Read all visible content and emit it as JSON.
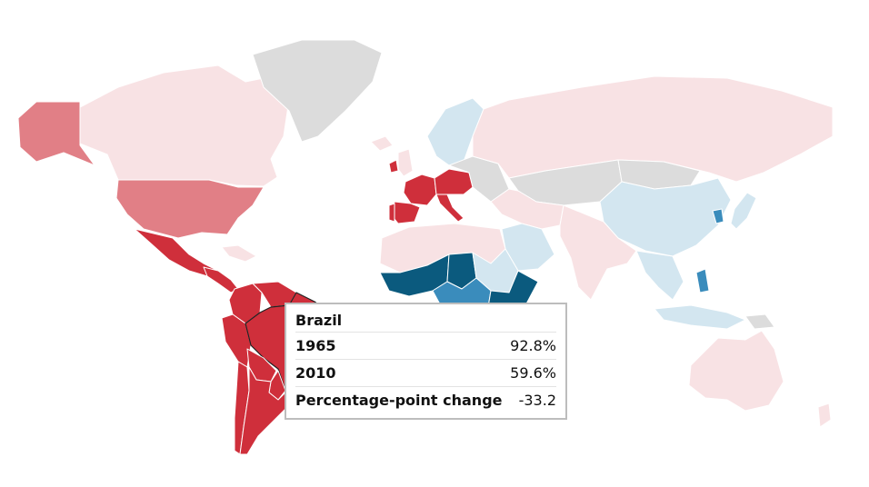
{
  "colors": {
    "ocean": "#ffffff",
    "no_data": "#dcdcdc",
    "decrease_strong": "#cf2f3b",
    "decrease_medium": "#e17f86",
    "decrease_light": "#f8e2e4",
    "increase_light": "#d3e6f0",
    "increase_medium": "#3a8cbc",
    "increase_strong": "#0b5a7e",
    "tooltip_border": "#bdbdbd",
    "highlight_stroke": "#222222"
  },
  "map": {
    "highlighted_country": "Brazil",
    "countries": [
      {
        "name": "Canada",
        "category": "decrease_light"
      },
      {
        "name": "Alaska (United States)",
        "category": "decrease_medium"
      },
      {
        "name": "United States",
        "category": "decrease_medium"
      },
      {
        "name": "Greenland",
        "category": "no_data"
      },
      {
        "name": "Mexico",
        "category": "decrease_strong"
      },
      {
        "name": "Central America",
        "category": "decrease_strong"
      },
      {
        "name": "Caribbean",
        "category": "decrease_light"
      },
      {
        "name": "Colombia",
        "category": "decrease_strong"
      },
      {
        "name": "Venezuela",
        "category": "decrease_strong"
      },
      {
        "name": "Peru",
        "category": "decrease_strong"
      },
      {
        "name": "Brazil",
        "category": "decrease_strong"
      },
      {
        "name": "Bolivia",
        "category": "decrease_strong"
      },
      {
        "name": "Paraguay",
        "category": "decrease_strong"
      },
      {
        "name": "Chile",
        "category": "decrease_strong"
      },
      {
        "name": "Argentina",
        "category": "decrease_strong"
      },
      {
        "name": "Iceland",
        "category": "decrease_light"
      },
      {
        "name": "Ireland",
        "category": "decrease_strong"
      },
      {
        "name": "United Kingdom",
        "category": "decrease_light"
      },
      {
        "name": "Scandinavia",
        "category": "increase_light"
      },
      {
        "name": "France",
        "category": "decrease_strong"
      },
      {
        "name": "Spain",
        "category": "decrease_strong"
      },
      {
        "name": "Portugal",
        "category": "decrease_strong"
      },
      {
        "name": "Italy",
        "category": "decrease_strong"
      },
      {
        "name": "Central Europe",
        "category": "decrease_strong"
      },
      {
        "name": "Eastern Europe",
        "category": "no_data"
      },
      {
        "name": "Russia",
        "category": "decrease_light"
      },
      {
        "name": "Central Asia",
        "category": "no_data"
      },
      {
        "name": "Middle East",
        "category": "decrease_light"
      },
      {
        "name": "Arabia",
        "category": "increase_light"
      },
      {
        "name": "North Africa",
        "category": "decrease_light"
      },
      {
        "name": "West Africa",
        "category": "increase_strong"
      },
      {
        "name": "Chad",
        "category": "increase_strong"
      },
      {
        "name": "Sudan",
        "category": "increase_light"
      },
      {
        "name": "Central Africa",
        "category": "increase_medium"
      },
      {
        "name": "East Africa",
        "category": "increase_strong"
      },
      {
        "name": "Southern Africa",
        "category": "increase_light"
      },
      {
        "name": "Madagascar",
        "category": "increase_light"
      },
      {
        "name": "India",
        "category": "decrease_light"
      },
      {
        "name": "China",
        "category": "increase_light"
      },
      {
        "name": "Mongolia",
        "category": "no_data"
      },
      {
        "name": "South Korea",
        "category": "increase_medium"
      },
      {
        "name": "Japan",
        "category": "increase_light"
      },
      {
        "name": "Southeast Asia",
        "category": "increase_light"
      },
      {
        "name": "Philippines",
        "category": "increase_medium"
      },
      {
        "name": "Indonesia",
        "category": "increase_light"
      },
      {
        "name": "Papua New Guinea",
        "category": "no_data"
      },
      {
        "name": "Australia",
        "category": "decrease_light"
      },
      {
        "name": "New Zealand",
        "category": "decrease_light"
      }
    ]
  },
  "tooltip": {
    "country": "Brazil",
    "rows": [
      {
        "label": "1965",
        "value": "92.8%"
      },
      {
        "label": "2010",
        "value": "59.6%"
      },
      {
        "label": "Percentage-point change",
        "value": "-33.2"
      }
    ]
  }
}
